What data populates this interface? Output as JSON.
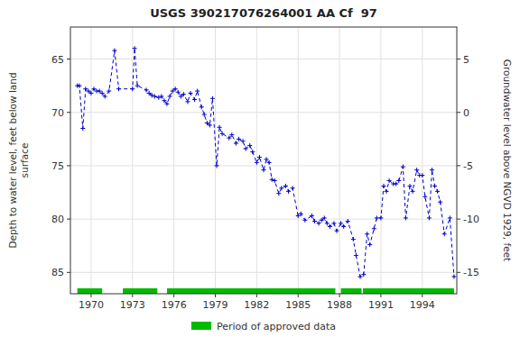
{
  "chart_data": {
    "type": "line",
    "title": "USGS 390217076264001 AA Cf  97",
    "y_label": "Depth to water level, feet below land\nsurface",
    "y2_label": "Groundwater level above NGVD 1929, feet",
    "grid": true,
    "xlim": [
      1968.5,
      1996.5
    ],
    "xticks": [
      1970,
      1973,
      1976,
      1979,
      1982,
      1985,
      1988,
      1991,
      1994
    ],
    "ylim": [
      87.0,
      62.0
    ],
    "yticks": [
      65,
      70,
      75,
      80,
      85
    ],
    "y2lim": [
      -17.0,
      8.0
    ],
    "y2ticks": [
      5,
      0,
      -5,
      -10,
      -15
    ],
    "x": [
      1969.0,
      1969.15,
      1969.4,
      1969.6,
      1969.8,
      1970.0,
      1970.2,
      1970.4,
      1970.6,
      1970.8,
      1971.0,
      1971.3,
      1971.7,
      1972.0,
      1973.0,
      1973.15,
      1973.35,
      1974.0,
      1974.2,
      1974.4,
      1974.6,
      1974.9,
      1975.1,
      1975.3,
      1975.5,
      1975.7,
      1975.9,
      1976.1,
      1976.3,
      1976.5,
      1976.7,
      1977.0,
      1977.2,
      1977.5,
      1977.7,
      1978.0,
      1978.2,
      1978.4,
      1978.6,
      1978.8,
      1979.1,
      1979.3,
      1979.5,
      1980.0,
      1980.2,
      1980.5,
      1980.7,
      1981.0,
      1981.2,
      1981.5,
      1981.7,
      1982.0,
      1982.2,
      1982.5,
      1982.7,
      1982.9,
      1983.1,
      1983.3,
      1983.6,
      1983.8,
      1984.1,
      1984.3,
      1984.6,
      1985.0,
      1985.2,
      1985.5,
      1986.0,
      1986.2,
      1986.5,
      1986.7,
      1986.9,
      1987.1,
      1987.3,
      1987.6,
      1987.8,
      1988.1,
      1988.3,
      1988.6,
      1989.0,
      1989.2,
      1989.5,
      1989.75,
      1990.0,
      1990.2,
      1990.5,
      1990.7,
      1991.0,
      1991.2,
      1991.4,
      1991.6,
      1991.9,
      1992.1,
      1992.3,
      1992.6,
      1992.8,
      1993.1,
      1993.3,
      1993.6,
      1993.8,
      1994.0,
      1994.2,
      1994.5,
      1994.7,
      1994.9,
      1995.1,
      1995.3,
      1995.6,
      1996.0,
      1996.3
    ],
    "series": [
      {
        "color": "#0000cc",
        "line_style": "dashed",
        "marker": "plus",
        "values": [
          67.5,
          67.5,
          71.5,
          67.8,
          68.0,
          68.2,
          67.8,
          68.0,
          68.0,
          68.2,
          68.5,
          68.0,
          64.2,
          67.8,
          67.8,
          64.0,
          67.5,
          67.9,
          68.2,
          68.4,
          68.5,
          68.6,
          68.5,
          68.9,
          69.2,
          68.5,
          68.0,
          67.8,
          68.1,
          68.5,
          68.3,
          69.0,
          68.2,
          68.8,
          68.0,
          69.5,
          70.2,
          71.0,
          71.2,
          68.7,
          75.0,
          71.4,
          72.0,
          72.4,
          72.1,
          72.9,
          72.5,
          72.7,
          73.4,
          73.1,
          73.7,
          74.7,
          74.2,
          75.4,
          74.4,
          74.7,
          76.3,
          76.4,
          77.6,
          77.1,
          76.9,
          77.4,
          77.1,
          79.7,
          79.5,
          80.1,
          79.7,
          80.2,
          80.4,
          80.1,
          79.9,
          80.4,
          80.7,
          80.4,
          81.1,
          80.4,
          80.7,
          80.2,
          81.9,
          83.4,
          85.4,
          85.2,
          81.4,
          82.4,
          80.9,
          79.9,
          79.9,
          76.9,
          77.4,
          76.4,
          76.7,
          76.7,
          76.4,
          75.1,
          79.9,
          76.9,
          77.4,
          75.4,
          75.9,
          75.9,
          77.9,
          79.9,
          75.4,
          76.9,
          77.4,
          78.4,
          81.4,
          79.9,
          85.4
        ]
      }
    ],
    "periods": {
      "name": "Period of approved data",
      "color": "#00bb00",
      "ranges": [
        [
          1969.0,
          1970.8
        ],
        [
          1972.3,
          1974.8
        ],
        [
          1975.5,
          1987.7
        ],
        [
          1988.1,
          1989.6
        ],
        [
          1989.7,
          1996.3
        ]
      ]
    }
  }
}
